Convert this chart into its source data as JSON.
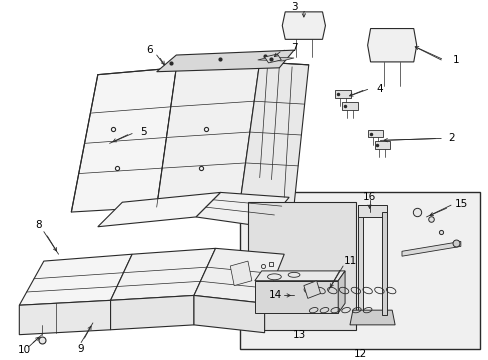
{
  "background_color": "#ffffff",
  "line_color": "#2a2a2a",
  "label_color": "#000000",
  "inset_bg": "#f0f0f0",
  "inset_inner_bg": "#e0e0e0"
}
